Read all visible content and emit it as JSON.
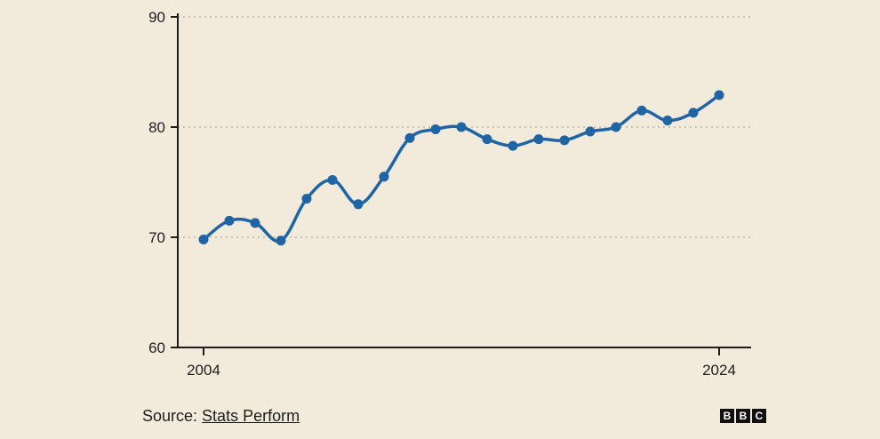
{
  "chart_data": {
    "type": "line",
    "title": "",
    "xlabel": "",
    "ylabel": "",
    "x": [
      2004,
      2005,
      2006,
      2007,
      2008,
      2009,
      2010,
      2011,
      2012,
      2013,
      2014,
      2015,
      2016,
      2017,
      2018,
      2019,
      2020,
      2021,
      2022,
      2023,
      2024
    ],
    "values": [
      69.8,
      71.5,
      71.3,
      69.7,
      73.5,
      75.2,
      73.0,
      75.5,
      79.0,
      79.8,
      80.0,
      78.9,
      78.3,
      78.9,
      78.8,
      79.6,
      80.0,
      81.5,
      80.6,
      81.3,
      82.9
    ],
    "x_tick_labels": [
      "2004",
      "2024"
    ],
    "x_tick_years": [
      2004,
      2024
    ],
    "y_ticks": [
      "90",
      "80",
      "70",
      "60"
    ],
    "y_tick_values": [
      90,
      80,
      70,
      60
    ],
    "ylim": [
      60,
      90
    ],
    "xlim": [
      2004,
      2024
    ],
    "grid": true,
    "colors": {
      "line": "#1f65a6",
      "axis": "#1d1d1d",
      "grid": "#c8c2b4",
      "background": "#f2eadb"
    }
  },
  "footer": {
    "source_prefix": "Source: ",
    "source_name": "Stats Perform"
  },
  "logo": {
    "letters": [
      "B",
      "B",
      "C"
    ]
  }
}
